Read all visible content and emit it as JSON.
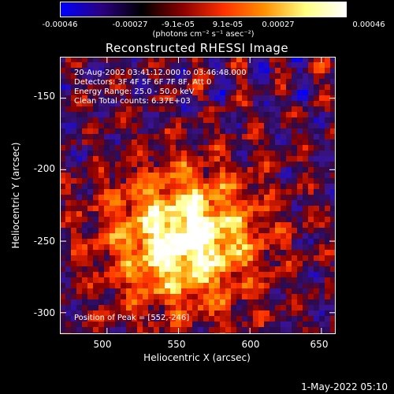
{
  "colorbar": {
    "tick_labels": [
      "-0.00046",
      "-0.00027",
      "-9.1e-05",
      "9.1e-05",
      "0.00027",
      "0.00046"
    ],
    "units_label": "(photons cm⁻² s⁻¹ asec⁻²)",
    "range": [
      -0.00046,
      0.00046
    ],
    "colors": [
      "#0000ff",
      "#2a0080",
      "#000000",
      "#8b0000",
      "#ff3000",
      "#ff9000",
      "#ffff80",
      "#ffffff"
    ]
  },
  "chart_data": {
    "type": "heatmap",
    "title": "Reconstructed RHESSI Image",
    "xlabel": "Heliocentric X (arcsec)",
    "ylabel": "Heliocentric Y (arcsec)",
    "xlim": [
      467,
      660
    ],
    "ylim": [
      -315,
      -121
    ],
    "x_ticks": [
      500,
      550,
      600,
      650
    ],
    "y_ticks": [
      -150,
      -200,
      -250,
      -300
    ],
    "peak": {
      "x": 552,
      "y": -246
    },
    "annotations": [
      "20-Aug-2002 03:41:12.000 to 03:46:48.000",
      "Detectors: 3F 4F 5F 6F 7F 8F, Att 0",
      "Energy Range: 25.0 - 50.0 keV",
      "Clean     Total counts: 6.37E+03",
      "Position of Peak = [552,-246]"
    ]
  },
  "footer": {
    "timestamp": "1-May-2022 05:10"
  }
}
